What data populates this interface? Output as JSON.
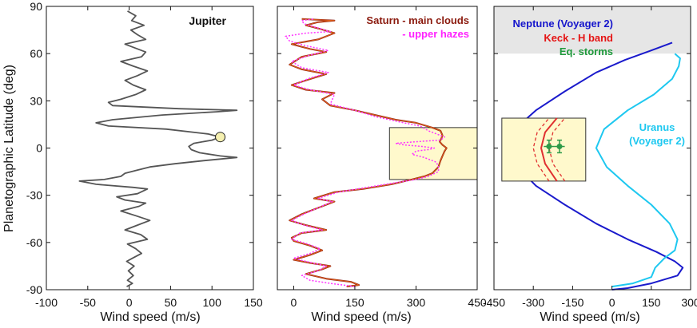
{
  "figure": {
    "ylabel": "Planetographic Latitude (deg)"
  },
  "chart_data": [
    {
      "type": "line",
      "panel": "jupiter",
      "title": "Jupiter",
      "xlabel": "Wind speed (m/s)",
      "ylabel": "Planetographic Latitude (deg)",
      "xlim": [
        -100,
        150
      ],
      "ylim": [
        -90,
        90
      ],
      "xticks": [
        -100,
        -50,
        0,
        50,
        100,
        150
      ],
      "yticks": [
        90,
        60,
        30,
        0,
        -30,
        -60,
        -90
      ],
      "colors": {
        "profile": "#555555",
        "marker": "#f5f0b0"
      },
      "series": [
        {
          "name": "Jupiter",
          "points": [
            [
              -3,
              -88
            ],
            [
              4,
              -86
            ],
            [
              -2,
              -84
            ],
            [
              5,
              -81
            ],
            [
              -1,
              -78
            ],
            [
              6,
              -75
            ],
            [
              -3,
              -72
            ],
            [
              4,
              -70
            ],
            [
              15,
              -67
            ],
            [
              8,
              -64
            ],
            [
              -2,
              -61
            ],
            [
              22,
              -58
            ],
            [
              14,
              -55
            ],
            [
              -5,
              -52
            ],
            [
              10,
              -49
            ],
            [
              25,
              -46
            ],
            [
              8,
              -43
            ],
            [
              -10,
              -40
            ],
            [
              12,
              -37
            ],
            [
              20,
              -35
            ],
            [
              -5,
              -33
            ],
            [
              -15,
              -31
            ],
            [
              10,
              -29
            ],
            [
              22,
              -26
            ],
            [
              5,
              -25
            ],
            [
              -40,
              -23
            ],
            [
              -60,
              -21
            ],
            [
              -30,
              -20
            ],
            [
              -10,
              -18
            ],
            [
              -5,
              -16
            ],
            [
              10,
              -14
            ],
            [
              25,
              -12
            ],
            [
              55,
              -10
            ],
            [
              90,
              -8
            ],
            [
              130,
              -6
            ],
            [
              110,
              -5
            ],
            [
              85,
              -3
            ],
            [
              75,
              -1
            ],
            [
              72,
              1
            ],
            [
              78,
              3
            ],
            [
              100,
              5
            ],
            [
              110,
              7
            ],
            [
              95,
              9
            ],
            [
              45,
              12
            ],
            [
              -25,
              14
            ],
            [
              -40,
              16
            ],
            [
              -20,
              18
            ],
            [
              40,
              21
            ],
            [
              105,
              23
            ],
            [
              130,
              24
            ],
            [
              60,
              25
            ],
            [
              -20,
              27
            ],
            [
              -25,
              29
            ],
            [
              -10,
              31
            ],
            [
              8,
              34
            ],
            [
              20,
              37
            ],
            [
              5,
              40
            ],
            [
              -5,
              43
            ],
            [
              10,
              46
            ],
            [
              22,
              49
            ],
            [
              5,
              52
            ],
            [
              -10,
              55
            ],
            [
              15,
              58
            ],
            [
              20,
              61
            ],
            [
              5,
              64
            ],
            [
              -5,
              66
            ],
            [
              20,
              69
            ],
            [
              10,
              72
            ],
            [
              2,
              75
            ],
            [
              18,
              78
            ],
            [
              3,
              81
            ],
            [
              8,
              84
            ],
            [
              -2,
              87
            ]
          ]
        }
      ],
      "marker": {
        "label": "",
        "x": 110,
        "y": 7
      }
    },
    {
      "type": "line",
      "panel": "saturn",
      "xlabel": "Wind speed (m/s)",
      "xlim": [
        -40,
        450
      ],
      "ylim": [
        -90,
        90
      ],
      "xticks": [
        0,
        150,
        300,
        450
      ],
      "yticks": [
        90,
        60,
        30,
        0,
        -30,
        -60,
        -90
      ],
      "colors": {
        "main": "#8b1a0e",
        "hazes": "#ff33ff",
        "box": "#fff9cc"
      },
      "legend": [
        {
          "text": "Saturn - main clouds",
          "color": "#8b1a0e"
        },
        {
          "text": "- upper hazes",
          "color": "#ff22ff"
        }
      ],
      "box": {
        "x": [
          235,
          450
        ],
        "y": [
          -20,
          13
        ]
      },
      "series": [
        {
          "name": "Saturn - main clouds",
          "points": [
            [
              130,
              -88
            ],
            [
              160,
              -87
            ],
            [
              140,
              -85
            ],
            [
              80,
              -83
            ],
            [
              30,
              -80
            ],
            [
              70,
              -77
            ],
            [
              90,
              -75
            ],
            [
              40,
              -73
            ],
            [
              0,
              -71
            ],
            [
              40,
              -68
            ],
            [
              70,
              -65
            ],
            [
              40,
              -62
            ],
            [
              0,
              -59
            ],
            [
              -5,
              -57
            ],
            [
              20,
              -54
            ],
            [
              80,
              -52
            ],
            [
              30,
              -49
            ],
            [
              -10,
              -46
            ],
            [
              20,
              -42
            ],
            [
              60,
              -38
            ],
            [
              100,
              -34
            ],
            [
              50,
              -32
            ],
            [
              100,
              -28
            ],
            [
              170,
              -26
            ],
            [
              240,
              -23
            ],
            [
              290,
              -20
            ],
            [
              320,
              -18
            ],
            [
              340,
              -16
            ],
            [
              355,
              -12
            ],
            [
              360,
              -8
            ],
            [
              365,
              -5
            ],
            [
              370,
              -2
            ],
            [
              375,
              0
            ],
            [
              365,
              2
            ],
            [
              358,
              4
            ],
            [
              362,
              6
            ],
            [
              365,
              8
            ],
            [
              360,
              11
            ],
            [
              340,
              13
            ],
            [
              300,
              16
            ],
            [
              250,
              18
            ],
            [
              200,
              21
            ],
            [
              150,
              24
            ],
            [
              90,
              27
            ],
            [
              70,
              31
            ],
            [
              100,
              35
            ],
            [
              30,
              37
            ],
            [
              -5,
              40
            ],
            [
              30,
              43
            ],
            [
              80,
              47
            ],
            [
              20,
              50
            ],
            [
              -10,
              53
            ],
            [
              20,
              58
            ],
            [
              80,
              61
            ],
            [
              40,
              63
            ],
            [
              -5,
              66
            ],
            [
              60,
              69
            ],
            [
              100,
              73
            ],
            [
              60,
              76
            ],
            [
              30,
              78
            ],
            [
              60,
              80
            ],
            [
              100,
              81
            ],
            [
              20,
              82
            ]
          ]
        },
        {
          "name": "upper hazes",
          "points": [
            [
              150,
              -88
            ],
            [
              90,
              -86
            ],
            [
              40,
              -84
            ],
            [
              20,
              -81
            ],
            [
              60,
              -78
            ],
            [
              80,
              -75
            ],
            [
              30,
              -72
            ],
            [
              0,
              -70
            ],
            [
              40,
              -67
            ],
            [
              65,
              -64
            ],
            [
              35,
              -61
            ],
            [
              -5,
              -58
            ],
            [
              15,
              -54
            ],
            [
              70,
              -52
            ],
            [
              25,
              -49
            ],
            [
              -5,
              -46
            ],
            [
              25,
              -42
            ],
            [
              60,
              -38
            ],
            [
              95,
              -34
            ],
            [
              60,
              -32
            ],
            [
              110,
              -28
            ],
            [
              180,
              -25
            ],
            [
              250,
              -22
            ],
            [
              300,
              -20
            ],
            [
              330,
              -18
            ],
            [
              355,
              -15
            ],
            [
              355,
              -12
            ],
            [
              350,
              -9
            ],
            [
              320,
              -6
            ],
            [
              290,
              -4
            ],
            [
              300,
              -2
            ],
            [
              330,
              -1
            ],
            [
              345,
              0
            ],
            [
              315,
              1
            ],
            [
              270,
              2
            ],
            [
              250,
              3
            ],
            [
              300,
              4
            ],
            [
              360,
              5
            ],
            [
              370,
              7
            ],
            [
              350,
              9
            ],
            [
              330,
              11
            ],
            [
              310,
              14
            ],
            [
              270,
              16
            ],
            [
              200,
              20
            ],
            [
              150,
              24
            ],
            [
              90,
              28
            ],
            [
              100,
              34
            ],
            [
              40,
              37
            ],
            [
              0,
              40
            ],
            [
              35,
              44
            ],
            [
              85,
              48
            ],
            [
              20,
              51
            ],
            [
              -5,
              55
            ],
            [
              40,
              59
            ],
            [
              85,
              62
            ],
            [
              30,
              65
            ],
            [
              -10,
              68
            ],
            [
              -20,
              71
            ],
            [
              30,
              73
            ],
            [
              90,
              74
            ],
            [
              50,
              77
            ],
            [
              25,
              79
            ],
            [
              20,
              81
            ],
            [
              50,
              82
            ]
          ]
        }
      ]
    },
    {
      "type": "line",
      "panel": "ice-giants",
      "xlabel": "Wind speed (m/s)",
      "xlim": [
        -450,
        300
      ],
      "ylim": [
        -90,
        90
      ],
      "xticks": [
        -450,
        -300,
        -150,
        0,
        150,
        300
      ],
      "yticks": [
        90,
        60,
        30,
        0,
        -30,
        -60,
        -90
      ],
      "colors": {
        "neptune": "#1a1acc",
        "uranus": "#1ec8f0",
        "keck": "#e03030",
        "storms": "#2e9a48",
        "shade": "#e6e6e6",
        "box": "#fff9cc"
      },
      "legend": [
        {
          "text": "Neptune (Voyager 2)",
          "color": "#1515cc"
        },
        {
          "text": "Keck - H band",
          "color": "#e51414"
        },
        {
          "text": "Eq. storms",
          "color": "#1f9a3c"
        }
      ],
      "annotation": [
        "Uranus",
        "(Voyager 2)"
      ],
      "shaded_lat": [
        60,
        90
      ],
      "box": {
        "x": [
          -420,
          -100
        ],
        "y": [
          -21,
          19
        ]
      },
      "series": [
        {
          "name": "Neptune (Voyager 2)",
          "points": [
            [
              0,
              -90
            ],
            [
              60,
              -89
            ],
            [
              150,
              -86
            ],
            [
              250,
              -81
            ],
            [
              270,
              -76
            ],
            [
              240,
              -72
            ],
            [
              170,
              -66
            ],
            [
              60,
              -58
            ],
            [
              -60,
              -48
            ],
            [
              -180,
              -36
            ],
            [
              -290,
              -24
            ],
            [
              -360,
              -12
            ],
            [
              -400,
              0
            ],
            [
              -370,
              12
            ],
            [
              -290,
              24
            ],
            [
              -180,
              36
            ],
            [
              -60,
              48
            ],
            [
              50,
              56
            ],
            [
              150,
              62
            ],
            [
              230,
              67
            ]
          ]
        },
        {
          "name": "Uranus (Voyager 2)",
          "points": [
            [
              0,
              -88
            ],
            [
              80,
              -86
            ],
            [
              150,
              -82
            ],
            [
              165,
              -76
            ],
            [
              200,
              -70
            ],
            [
              240,
              -65
            ],
            [
              250,
              -58
            ],
            [
              220,
              -48
            ],
            [
              150,
              -36
            ],
            [
              60,
              -24
            ],
            [
              -20,
              -12
            ],
            [
              -60,
              0
            ],
            [
              -30,
              12
            ],
            [
              60,
              24
            ],
            [
              160,
              34
            ],
            [
              230,
              44
            ],
            [
              255,
              52
            ],
            [
              260,
              57
            ],
            [
              240,
              60
            ]
          ]
        },
        {
          "name": "Keck - H band",
          "points": [
            [
              -210,
              -21
            ],
            [
              -255,
              -10
            ],
            [
              -270,
              0
            ],
            [
              -255,
              10
            ],
            [
              -210,
              19
            ]
          ]
        }
      ],
      "storms": [
        {
          "x": -240,
          "y": 1,
          "xerr": 20,
          "yerr": 4
        },
        {
          "x": -200,
          "y": 1,
          "xerr": 20,
          "yerr": 4
        }
      ]
    }
  ]
}
